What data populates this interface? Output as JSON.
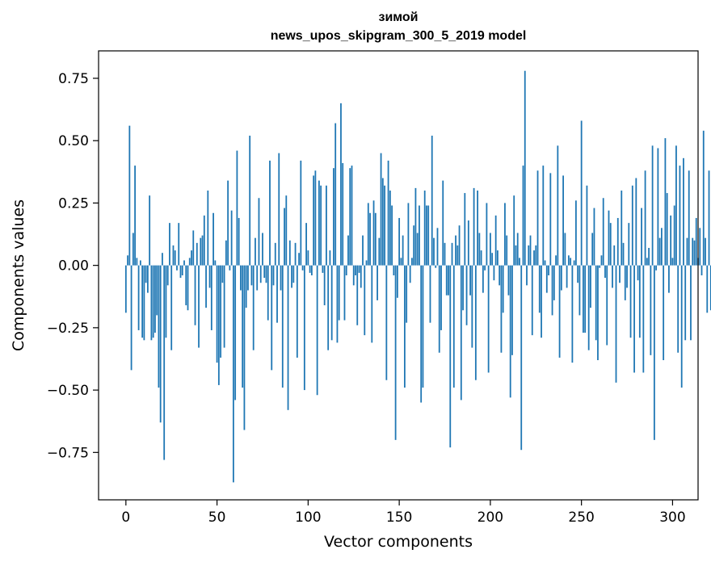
{
  "chart_data": {
    "type": "bar",
    "title_lines": [
      "зимой",
      "news_upos_skipgram_300_5_2019 model"
    ],
    "xlabel": "Vector components",
    "ylabel": "Components values",
    "xlim": [
      -15,
      314
    ],
    "ylim": [
      -0.94,
      0.86
    ],
    "xticks": [
      0,
      50,
      100,
      150,
      200,
      250,
      300
    ],
    "xtick_labels": [
      "0",
      "50",
      "100",
      "150",
      "200",
      "250",
      "300"
    ],
    "yticks": [
      -0.75,
      -0.5,
      -0.25,
      0.0,
      0.25,
      0.5,
      0.75
    ],
    "ytick_labels": [
      "−0.75",
      "−0.50",
      "−0.25",
      "0.00",
      "0.25",
      "0.50",
      "0.75"
    ],
    "bar_color": "#1f77b4",
    "grid": false,
    "x_start": 0,
    "values": [
      -0.19,
      0.04,
      0.56,
      -0.42,
      0.13,
      0.4,
      0.03,
      -0.26,
      0.02,
      -0.29,
      -0.3,
      -0.07,
      -0.11,
      0.28,
      -0.3,
      -0.29,
      -0.27,
      -0.2,
      -0.49,
      -0.63,
      0.05,
      -0.78,
      -0.29,
      -0.08,
      0.17,
      -0.34,
      0.08,
      0.06,
      -0.02,
      0.17,
      -0.05,
      -0.04,
      0.02,
      -0.16,
      -0.18,
      0.03,
      0.06,
      0.14,
      -0.24,
      0.09,
      -0.33,
      0.11,
      0.12,
      0.2,
      -0.17,
      0.3,
      -0.09,
      -0.26,
      0.21,
      0.02,
      -0.39,
      -0.48,
      -0.37,
      -0.07,
      -0.33,
      0.1,
      0.34,
      -0.02,
      0.22,
      -0.87,
      -0.54,
      0.46,
      0.19,
      -0.1,
      -0.49,
      -0.66,
      -0.17,
      -0.1,
      0.52,
      -0.08,
      -0.34,
      0.11,
      -0.1,
      0.27,
      -0.07,
      0.13,
      -0.05,
      -0.07,
      -0.22,
      0.42,
      -0.42,
      -0.08,
      0.09,
      -0.23,
      0.45,
      -0.1,
      -0.49,
      0.23,
      0.28,
      -0.58,
      0.1,
      -0.09,
      -0.07,
      0.09,
      -0.37,
      0.05,
      0.42,
      -0.02,
      -0.5,
      0.17,
      0.06,
      -0.03,
      -0.04,
      0.36,
      0.38,
      -0.52,
      0.34,
      0.32,
      -0.03,
      -0.16,
      0.32,
      -0.34,
      0.06,
      -0.3,
      0.39,
      0.57,
      -0.31,
      -0.22,
      0.65,
      0.41,
      -0.22,
      -0.04,
      0.12,
      0.39,
      0.4,
      -0.08,
      -0.04,
      -0.24,
      -0.03,
      -0.09,
      0.12,
      -0.28,
      0.02,
      0.25,
      0.21,
      -0.31,
      0.26,
      0.21,
      -0.14,
      0.11,
      0.45,
      0.35,
      0.32,
      -0.46,
      0.42,
      0.3,
      0.24,
      -0.04,
      -0.7,
      -0.13,
      0.19,
      0.03,
      0.12,
      -0.49,
      -0.23,
      0.25,
      -0.07,
      0.03,
      0.16,
      0.31,
      0.13,
      0.24,
      -0.55,
      -0.49,
      0.3,
      0.24,
      0.24,
      -0.23,
      0.52,
      0.11,
      -0.01,
      0.15,
      -0.35,
      -0.26,
      0.34,
      0.09,
      -0.12,
      -0.12,
      -0.73,
      0.09,
      -0.49,
      0.12,
      0.08,
      0.16,
      -0.54,
      -0.18,
      0.29,
      -0.24,
      0.18,
      -0.12,
      -0.33,
      0.31,
      -0.46,
      0.3,
      0.13,
      0.06,
      -0.11,
      -0.02,
      0.25,
      -0.43,
      0.13,
      0.05,
      -0.06,
      0.2,
      0.06,
      -0.08,
      -0.35,
      -0.19,
      0.25,
      0.12,
      -0.12,
      -0.53,
      -0.36,
      0.28,
      0.08,
      0.13,
      0.03,
      -0.74,
      0.4,
      0.78,
      -0.08,
      0.08,
      0.12,
      -0.28,
      0.06,
      0.08,
      0.38,
      -0.19,
      -0.29,
      0.4,
      0.02,
      -0.11,
      -0.04,
      0.37,
      -0.2,
      -0.14,
      0.04,
      0.48,
      -0.37,
      -0.1,
      0.36,
      0.13,
      -0.09,
      0.04,
      0.03,
      -0.39,
      0.02,
      0.26,
      -0.07,
      -0.2,
      0.58,
      -0.27,
      -0.27,
      0.32,
      -0.34,
      -0.17,
      0.13,
      0.23,
      -0.3,
      -0.38,
      -0.01,
      0.04,
      0.27,
      -0.05,
      -0.32,
      0.22,
      0.17,
      -0.09,
      0.08,
      -0.47,
      0.19,
      -0.07,
      0.3,
      0.09,
      -0.14,
      -0.09,
      0.17,
      -0.29,
      0.32,
      -0.43,
      0.35,
      -0.06,
      -0.29,
      0.23,
      -0.43,
      0.38,
      0.03,
      0.07,
      -0.36,
      0.48,
      -0.7,
      -0.02,
      0.47,
      0.11,
      0.15,
      -0.38,
      0.51,
      0.29,
      -0.11,
      0.2,
      0.03,
      0.24,
      0.48,
      -0.35,
      0.4,
      -0.49,
      0.43,
      -0.3,
      0.11,
      0.38,
      -0.3,
      0.11,
      0.1,
      0.19,
      0.03,
      0.15,
      -0.04,
      0.54,
      0.11,
      -0.19,
      0.38,
      -0.18,
      0.16
    ]
  }
}
